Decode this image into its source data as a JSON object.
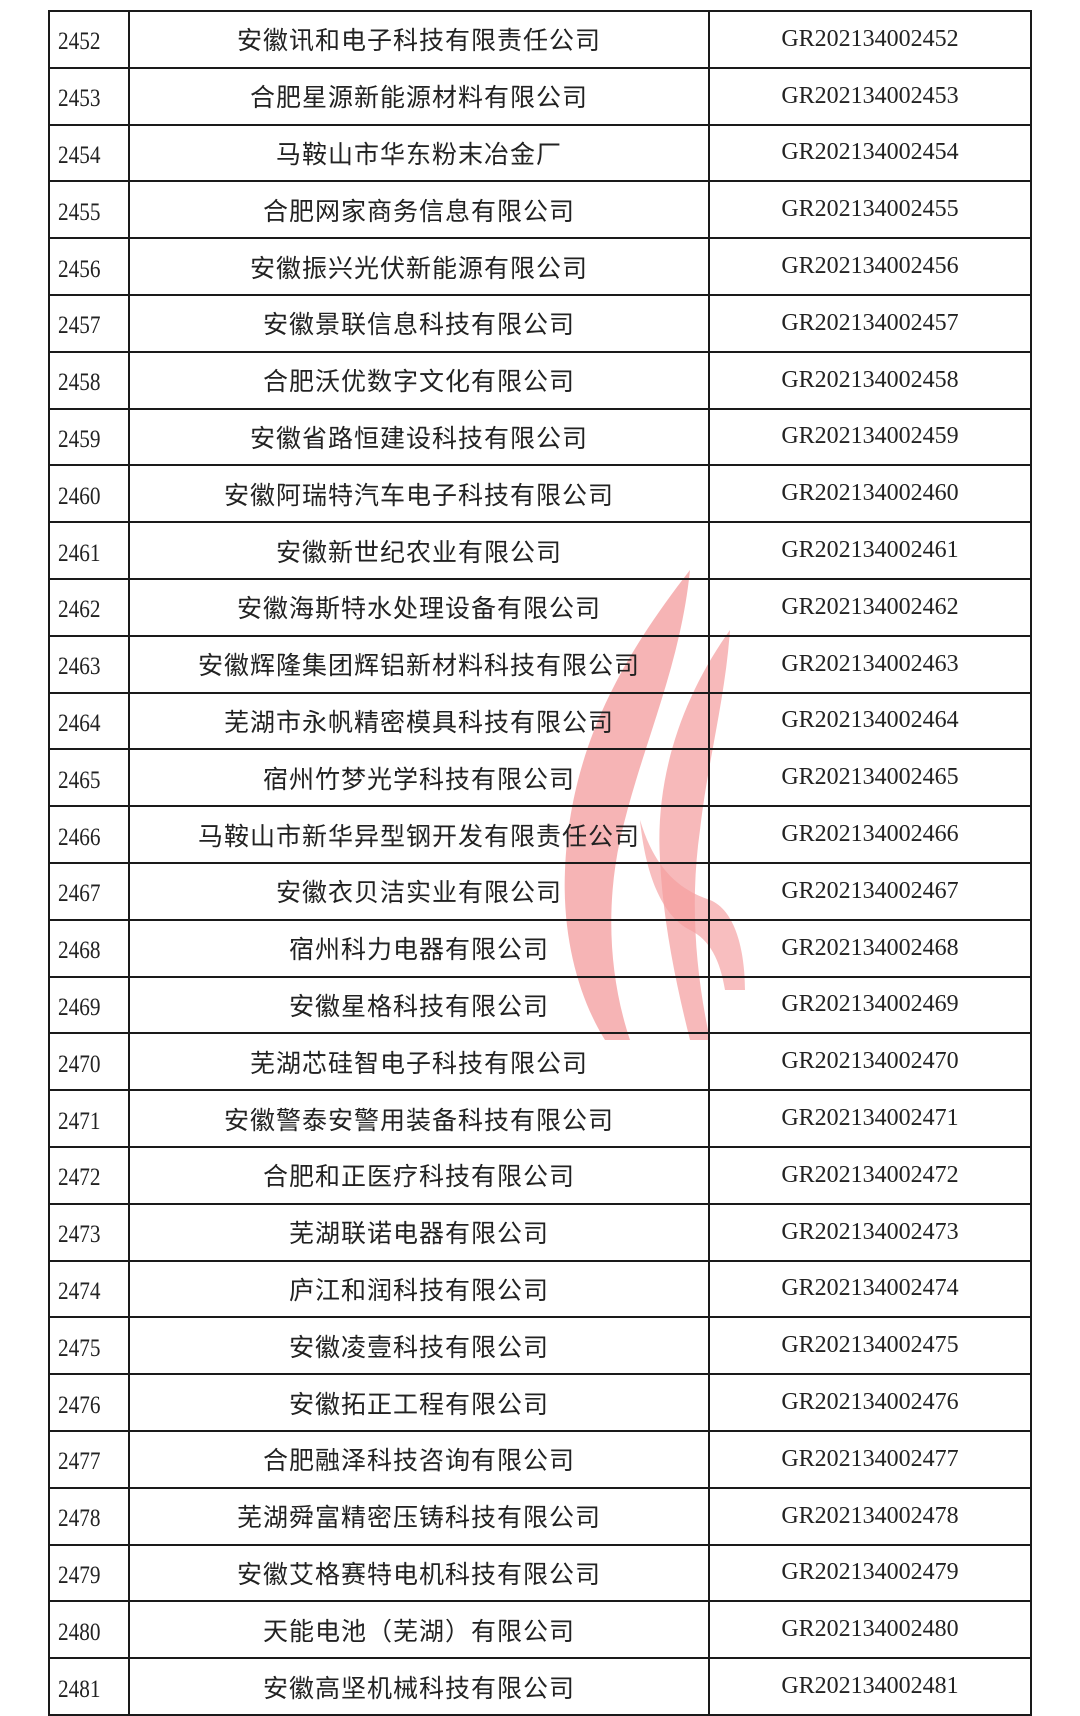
{
  "watermark": {
    "type": "flame-logo",
    "color": "#e8464a"
  },
  "table": {
    "rows": [
      {
        "no": "2452",
        "name": "安徽讯和电子科技有限责任公司",
        "code": "GR202134002452"
      },
      {
        "no": "2453",
        "name": "合肥星源新能源材料有限公司",
        "code": "GR202134002453"
      },
      {
        "no": "2454",
        "name": "马鞍山市华东粉末冶金厂",
        "code": "GR202134002454"
      },
      {
        "no": "2455",
        "name": "合肥网家商务信息有限公司",
        "code": "GR202134002455"
      },
      {
        "no": "2456",
        "name": "安徽振兴光伏新能源有限公司",
        "code": "GR202134002456"
      },
      {
        "no": "2457",
        "name": "安徽景联信息科技有限公司",
        "code": "GR202134002457"
      },
      {
        "no": "2458",
        "name": "合肥沃优数字文化有限公司",
        "code": "GR202134002458"
      },
      {
        "no": "2459",
        "name": "安徽省路恒建设科技有限公司",
        "code": "GR202134002459"
      },
      {
        "no": "2460",
        "name": "安徽阿瑞特汽车电子科技有限公司",
        "code": "GR202134002460"
      },
      {
        "no": "2461",
        "name": "安徽新世纪农业有限公司",
        "code": "GR202134002461"
      },
      {
        "no": "2462",
        "name": "安徽海斯特水处理设备有限公司",
        "code": "GR202134002462"
      },
      {
        "no": "2463",
        "name": "安徽辉隆集团辉铝新材料科技有限公司",
        "code": "GR202134002463"
      },
      {
        "no": "2464",
        "name": "芜湖市永帆精密模具科技有限公司",
        "code": "GR202134002464"
      },
      {
        "no": "2465",
        "name": "宿州竹梦光学科技有限公司",
        "code": "GR202134002465"
      },
      {
        "no": "2466",
        "name": "马鞍山市新华异型钢开发有限责任公司",
        "code": "GR202134002466"
      },
      {
        "no": "2467",
        "name": "安徽衣贝洁实业有限公司",
        "code": "GR202134002467"
      },
      {
        "no": "2468",
        "name": "宿州科力电器有限公司",
        "code": "GR202134002468"
      },
      {
        "no": "2469",
        "name": "安徽星格科技有限公司",
        "code": "GR202134002469"
      },
      {
        "no": "2470",
        "name": "芜湖芯硅智电子科技有限公司",
        "code": "GR202134002470"
      },
      {
        "no": "2471",
        "name": "安徽警泰安警用装备科技有限公司",
        "code": "GR202134002471"
      },
      {
        "no": "2472",
        "name": "合肥和正医疗科技有限公司",
        "code": "GR202134002472"
      },
      {
        "no": "2473",
        "name": "芜湖联诺电器有限公司",
        "code": "GR202134002473"
      },
      {
        "no": "2474",
        "name": "庐江和润科技有限公司",
        "code": "GR202134002474"
      },
      {
        "no": "2475",
        "name": "安徽凌壹科技有限公司",
        "code": "GR202134002475"
      },
      {
        "no": "2476",
        "name": "安徽拓正工程有限公司",
        "code": "GR202134002476"
      },
      {
        "no": "2477",
        "name": "合肥融泽科技咨询有限公司",
        "code": "GR202134002477"
      },
      {
        "no": "2478",
        "name": "芜湖舜富精密压铸科技有限公司",
        "code": "GR202134002478"
      },
      {
        "no": "2479",
        "name": "安徽艾格赛特电机科技有限公司",
        "code": "GR202134002479"
      },
      {
        "no": "2480",
        "name": "天能电池（芜湖）有限公司",
        "code": "GR202134002480"
      },
      {
        "no": "2481",
        "name": "安徽高坚机械科技有限公司",
        "code": "GR202134002481"
      }
    ]
  }
}
